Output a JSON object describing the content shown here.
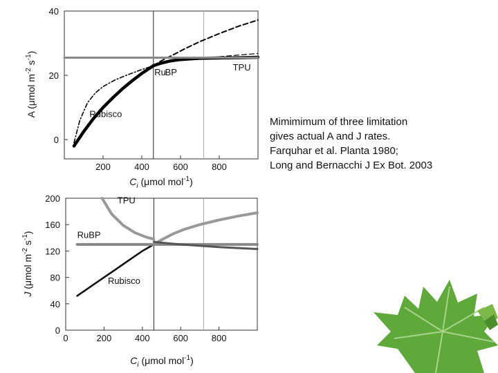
{
  "caption": {
    "lines": [
      "Mimimimum of three limitation",
      "gives actual A and J rates.",
      "Farquhar et al. Planta 1980;",
      "Long and Bernacchi J Ex Bot. 2003"
    ]
  },
  "leaf_decoration": "maple-leaf",
  "chart_data": [
    {
      "type": "line",
      "xlabel": "Ci (μmol mol-1)",
      "ylabel": "A (μmol m-2 s-1)",
      "xlim": [
        0,
        1000
      ],
      "ylim": [
        -6,
        40
      ],
      "xticks": [
        200,
        400,
        600,
        800
      ],
      "yticks": [
        0,
        20,
        40
      ],
      "vlines": [
        460,
        720
      ],
      "grid": false,
      "labels": [
        {
          "text": "Rubisco",
          "x": 130,
          "y": 7
        },
        {
          "text": "Ru",
          "x": 465,
          "y": 20
        },
        {
          "text": "BP",
          "x": 520,
          "y": 20
        },
        {
          "text": "TPU",
          "x": 870,
          "y": 21.5
        }
      ],
      "series": [
        {
          "role": "rubisco-actual",
          "color": "#000000",
          "style": "solid",
          "width": 4.5,
          "x": [
            50,
            100,
            150,
            200,
            250,
            300,
            350,
            400,
            460
          ],
          "y": [
            -2,
            2.5,
            6.5,
            10,
            13,
            15.8,
            18.3,
            20.6,
            23
          ]
        },
        {
          "role": "rubp-actual",
          "color": "#000000",
          "style": "solid",
          "width": 4.5,
          "x": [
            460,
            500,
            550,
            600,
            650,
            700,
            800,
            900,
            1000
          ],
          "y": [
            23,
            23.8,
            24.5,
            24.9,
            25.1,
            25.3,
            25.4,
            25.5,
            25.6
          ]
        },
        {
          "role": "rubp-dashdot",
          "color": "#000000",
          "style": "dashdot",
          "width": 1.6,
          "x": [
            50,
            80,
            120,
            160,
            200,
            260,
            320,
            400,
            460
          ],
          "y": [
            -1,
            6,
            11.5,
            14.5,
            16.5,
            18.5,
            20,
            21.8,
            23
          ]
        },
        {
          "role": "rubisco-dashed",
          "color": "#000000",
          "style": "dashed",
          "width": 2,
          "x": [
            460,
            500,
            560,
            620,
            700,
            800,
            900,
            1000
          ],
          "y": [
            23,
            24.5,
            26.3,
            28.2,
            30.5,
            33,
            35.3,
            37.2
          ]
        },
        {
          "role": "rubp-dashed-light",
          "color": "#000000",
          "style": "dashed",
          "width": 1.2,
          "x": [
            720,
            800,
            900,
            1000
          ],
          "y": [
            25.4,
            25.8,
            26.3,
            26.8
          ]
        },
        {
          "role": "tpu",
          "color": "#888888",
          "style": "solid",
          "width": 3,
          "x": [
            0,
            1000
          ],
          "y": [
            25.5,
            25.5
          ]
        }
      ]
    },
    {
      "type": "line",
      "xlabel": "Ci (μmol mol-1)",
      "ylabel": "J (μmol m-2 s-1)",
      "xlim": [
        0,
        1000
      ],
      "ylim": [
        0,
        200
      ],
      "xticks": [
        0,
        200,
        400,
        600,
        800
      ],
      "yticks": [
        0,
        40,
        80,
        120,
        160,
        200
      ],
      "vlines": [
        460,
        720
      ],
      "grid": false,
      "labels": [
        {
          "text": "TPU",
          "x": 270,
          "y": 192
        },
        {
          "text": "RuBP",
          "x": 60,
          "y": 140
        },
        {
          "text": "Rubisco",
          "x": 220,
          "y": 70
        }
      ],
      "series": [
        {
          "role": "rubisco",
          "color": "#111111",
          "style": "solid",
          "width": 2.6,
          "x": [
            60,
            100,
            150,
            200,
            250,
            300,
            350,
            400,
            460
          ],
          "y": [
            52,
            60,
            70,
            80,
            90,
            100,
            110,
            120,
            130
          ]
        },
        {
          "role": "rubisco-extended",
          "color": "#999999",
          "style": "solid",
          "width": 4,
          "x": [
            460,
            500,
            560,
            620,
            700,
            800,
            900,
            1000
          ],
          "y": [
            130,
            137,
            146,
            153,
            160,
            167,
            173,
            178
          ]
        },
        {
          "role": "rubp",
          "color": "#888888",
          "style": "solid",
          "width": 4,
          "x": [
            60,
            1000
          ],
          "y": [
            130,
            130
          ]
        },
        {
          "role": "tpu",
          "color": "#999999",
          "style": "solid",
          "width": 4,
          "x": [
            190,
            240,
            300,
            360,
            420,
            460
          ],
          "y": [
            200,
            176,
            159,
            148,
            141,
            138
          ]
        },
        {
          "role": "tpu-actual",
          "color": "#555555",
          "style": "solid",
          "width": 3,
          "x": [
            460,
            520,
            600,
            700,
            800,
            900,
            1000
          ],
          "y": [
            134,
            132,
            130,
            128,
            126,
            124.5,
            123
          ]
        }
      ]
    }
  ]
}
